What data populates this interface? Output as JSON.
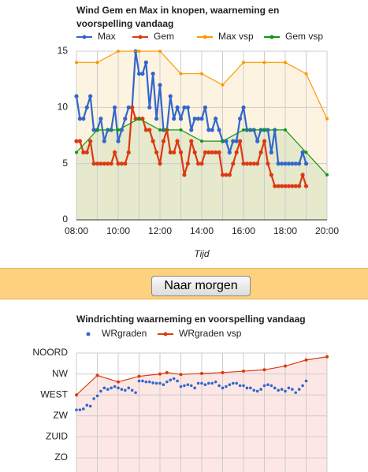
{
  "chart_data": [
    {
      "type": "line",
      "title": "Wind Gem en Max in knopen, waarneming en voorspelling vandaag",
      "xlabel": "Tijd",
      "xlim": [
        "08:00",
        "20:00"
      ],
      "xticks": [
        "08:00",
        "10:00",
        "12:00",
        "14:00",
        "16:00",
        "18:00",
        "20:00"
      ],
      "xgrid": true,
      "ylim": [
        0,
        15
      ],
      "yticks": [
        0,
        5,
        10,
        15
      ],
      "grid": true,
      "series": [
        {
          "name": "Max",
          "color": "#3366cc",
          "mode": "lines+markers",
          "x": [
            "08:00",
            "08:10",
            "08:20",
            "08:30",
            "08:40",
            "08:50",
            "09:00",
            "09:10",
            "09:20",
            "09:30",
            "09:40",
            "09:50",
            "10:00",
            "10:10",
            "10:20",
            "10:30",
            "10:40",
            "10:50",
            "11:00",
            "11:10",
            "11:20",
            "11:30",
            "11:40",
            "11:50",
            "12:00",
            "12:10",
            "12:20",
            "12:30",
            "12:40",
            "12:50",
            "13:00",
            "13:10",
            "13:20",
            "13:30",
            "13:40",
            "13:50",
            "14:00",
            "14:10",
            "14:20",
            "14:30",
            "14:40",
            "14:50",
            "15:00",
            "15:10",
            "15:20",
            "15:30",
            "15:40",
            "15:50",
            "16:00",
            "16:10",
            "16:20",
            "16:30",
            "16:40",
            "16:50",
            "17:00",
            "17:10",
            "17:20",
            "17:30",
            "17:40",
            "17:50",
            "18:00",
            "18:10",
            "18:20",
            "18:30",
            "18:40",
            "18:50",
            "19:00"
          ],
          "values": [
            11,
            9,
            9,
            10,
            11,
            8,
            8,
            9,
            7,
            8,
            8,
            10,
            7,
            8,
            9,
            10,
            10,
            15,
            13,
            13,
            14,
            10,
            13,
            9,
            12,
            8,
            8,
            11,
            9,
            10,
            9,
            10,
            10,
            8,
            9,
            9,
            9,
            10,
            8,
            8,
            9,
            8,
            7,
            7,
            6,
            7,
            7,
            9,
            10,
            8,
            8,
            8,
            7,
            8,
            8,
            8,
            6,
            8,
            5,
            5,
            5,
            5,
            5,
            5,
            5,
            6,
            5
          ]
        },
        {
          "name": "Gem",
          "color": "#dc3912",
          "mode": "lines+markers",
          "x": [
            "08:00",
            "08:10",
            "08:20",
            "08:30",
            "08:40",
            "08:50",
            "09:00",
            "09:10",
            "09:20",
            "09:30",
            "09:40",
            "09:50",
            "10:00",
            "10:10",
            "10:20",
            "10:30",
            "10:40",
            "10:50",
            "11:00",
            "11:10",
            "11:20",
            "11:30",
            "11:40",
            "11:50",
            "12:00",
            "12:10",
            "12:20",
            "12:30",
            "12:40",
            "12:50",
            "13:00",
            "13:10",
            "13:20",
            "13:30",
            "13:40",
            "13:50",
            "14:00",
            "14:10",
            "14:20",
            "14:30",
            "14:40",
            "14:50",
            "15:00",
            "15:10",
            "15:20",
            "15:30",
            "15:40",
            "15:50",
            "16:00",
            "16:10",
            "16:20",
            "16:30",
            "16:40",
            "16:50",
            "17:00",
            "17:10",
            "17:20",
            "17:30",
            "17:40",
            "17:50",
            "18:00",
            "18:10",
            "18:20",
            "18:30",
            "18:40",
            "18:50",
            "19:00"
          ],
          "values": [
            7,
            7,
            6,
            6,
            7,
            5,
            5,
            5,
            5,
            5,
            5,
            6,
            5,
            5,
            5,
            6,
            10,
            9,
            9,
            9,
            8,
            8,
            7,
            6,
            5,
            7,
            8,
            6,
            6,
            7,
            6,
            4,
            5,
            7,
            6,
            5,
            5,
            6,
            6,
            6,
            6,
            6,
            4,
            4,
            4,
            5,
            6,
            7,
            5,
            5,
            5,
            5,
            5,
            6,
            7,
            5,
            4,
            3,
            3,
            3,
            3,
            3,
            3,
            3,
            3,
            4,
            3
          ]
        },
        {
          "name": "Max vsp",
          "color": "#ff9900",
          "mode": "lines+markers",
          "area": true,
          "area_color": "#fdf1dc",
          "x": [
            "08:00",
            "09:00",
            "10:00",
            "11:00",
            "12:00",
            "13:00",
            "14:00",
            "15:00",
            "16:00",
            "17:00",
            "18:00",
            "19:00",
            "20:00"
          ],
          "values": [
            14,
            14,
            15,
            15,
            15,
            13,
            13,
            12,
            14,
            14,
            14,
            13,
            9
          ]
        },
        {
          "name": "Gem vsp",
          "color": "#109618",
          "mode": "lines+markers",
          "area": true,
          "area_color": "#e2e6c8",
          "x": [
            "08:00",
            "09:00",
            "10:00",
            "11:00",
            "12:00",
            "13:00",
            "14:00",
            "15:00",
            "16:00",
            "17:00",
            "18:00",
            "19:00",
            "20:00"
          ],
          "values": [
            6,
            8,
            8,
            9,
            8,
            8,
            7,
            7,
            8,
            8,
            8,
            6,
            4
          ]
        }
      ]
    },
    {
      "type": "line",
      "title": "Windrichting waarneming en voorspelling vandaag",
      "xlim": [
        "08:00",
        "20:00"
      ],
      "xgrid": true,
      "ylim": [
        90,
        360
      ],
      "yticks": [
        {
          "value": 360,
          "label": "NOORD"
        },
        {
          "value": 315,
          "label": "NW"
        },
        {
          "value": 270,
          "label": "WEST"
        },
        {
          "value": 225,
          "label": "ZW"
        },
        {
          "value": 180,
          "label": "ZUID"
        },
        {
          "value": 135,
          "label": "ZO"
        }
      ],
      "grid": true,
      "series": [
        {
          "name": "WRgraden",
          "color": "#3366cc",
          "mode": "markers",
          "x": [
            "08:00",
            "08:10",
            "08:20",
            "08:30",
            "08:40",
            "08:50",
            "09:00",
            "09:10",
            "09:20",
            "09:30",
            "09:40",
            "09:50",
            "10:00",
            "10:10",
            "10:20",
            "10:30",
            "10:40",
            "10:50",
            "11:00",
            "11:10",
            "11:20",
            "11:30",
            "11:40",
            "11:50",
            "12:00",
            "12:10",
            "12:20",
            "12:30",
            "12:40",
            "12:50",
            "13:00",
            "13:10",
            "13:20",
            "13:30",
            "13:40",
            "13:50",
            "14:00",
            "14:10",
            "14:20",
            "14:30",
            "14:40",
            "14:50",
            "15:00",
            "15:10",
            "15:20",
            "15:30",
            "15:40",
            "15:50",
            "16:00",
            "16:10",
            "16:20",
            "16:30",
            "16:40",
            "16:50",
            "17:00",
            "17:10",
            "17:20",
            "17:30",
            "17:40",
            "17:50",
            "18:00",
            "18:10",
            "18:20",
            "18:30",
            "18:40",
            "18:50",
            "19:00"
          ],
          "values": [
            238,
            238,
            240,
            248,
            246,
            262,
            268,
            278,
            285,
            282,
            285,
            288,
            285,
            282,
            280,
            285,
            280,
            275,
            300,
            300,
            298,
            298,
            296,
            295,
            295,
            292,
            298,
            302,
            305,
            300,
            288,
            290,
            292,
            290,
            285,
            295,
            295,
            292,
            295,
            295,
            298,
            290,
            285,
            288,
            292,
            295,
            295,
            290,
            290,
            285,
            285,
            280,
            278,
            282,
            290,
            292,
            290,
            285,
            280,
            282,
            278,
            285,
            282,
            275,
            282,
            290,
            300
          ]
        },
        {
          "name": "WRgraden vsp",
          "color": "#dc3912",
          "mode": "lines+markers",
          "area": true,
          "area_color": "#fbe3df",
          "x": [
            "08:00",
            "09:00",
            "10:00",
            "11:00",
            "12:00",
            "12:20",
            "13:00",
            "14:00",
            "15:00",
            "16:00",
            "17:00",
            "18:00",
            "19:00",
            "20:00"
          ],
          "values": [
            270,
            312,
            298,
            310,
            315,
            318,
            314,
            316,
            318,
            321,
            324,
            332,
            345,
            352
          ]
        }
      ]
    }
  ],
  "button": {
    "label": "Naar morgen"
  }
}
